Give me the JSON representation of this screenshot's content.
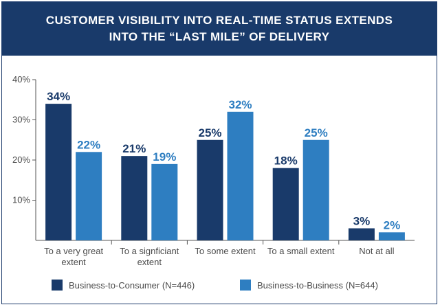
{
  "colors": {
    "header_bg": "#193a6a",
    "b2c": "#193a6a",
    "b2b": "#2e7ec1",
    "text": "#4a4a4a",
    "axis": "#555555"
  },
  "chart_data": {
    "type": "bar",
    "title_lines": [
      "CUSTOMER VISIBILITY INTO REAL-TIME STATUS EXTENDS",
      "INTO THE “LAST MILE” OF DELIVERY"
    ],
    "categories": [
      [
        "To a very great",
        "extent"
      ],
      [
        "To a signficiant",
        "extent"
      ],
      [
        "To some extent"
      ],
      [
        "To a small extent"
      ],
      [
        "Not at all"
      ]
    ],
    "series": [
      {
        "name": "Business-to-Consumer (N=446)",
        "values": [
          34,
          21,
          25,
          18,
          3
        ],
        "color": "#193a6a"
      },
      {
        "name": "Business-to-Business (N=644)",
        "values": [
          22,
          19,
          32,
          25,
          2
        ],
        "color": "#2e7ec1"
      }
    ],
    "ylim": [
      0,
      40
    ],
    "yticks": [
      10,
      20,
      30,
      40
    ],
    "ytick_labels": [
      "10%",
      "20%",
      "30%",
      "40%"
    ],
    "value_suffix": "%",
    "legend_position": "bottom"
  }
}
